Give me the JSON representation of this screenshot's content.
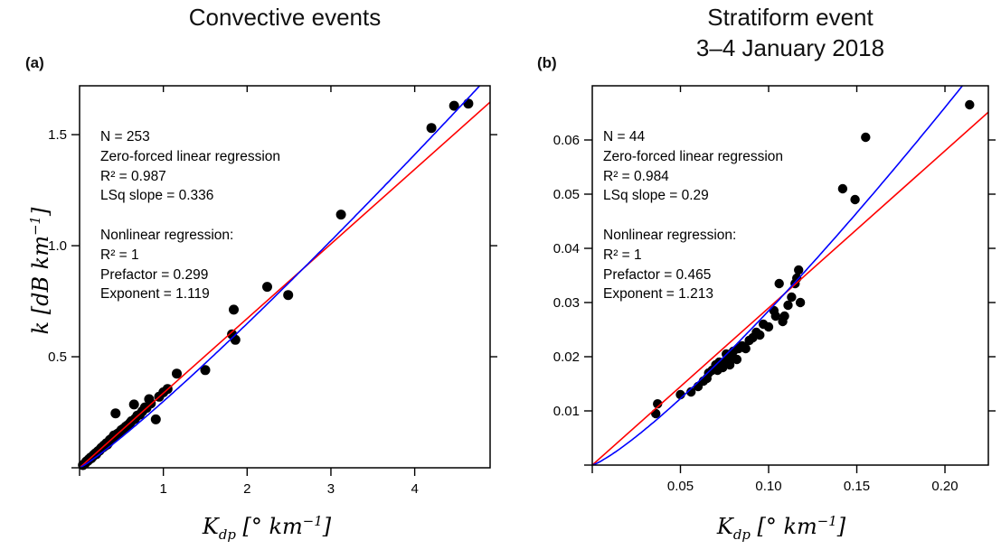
{
  "figure": {
    "kind": "two-panel scatter figure with regression fits",
    "background_color": "#ffffff",
    "point_color": "#000000",
    "linear_fit_color": "#ff0000",
    "power_fit_color": "#0000ff"
  },
  "chart_data": [
    {
      "type": "scatter",
      "panel_key": "a",
      "panel_label": "(a)",
      "title": "Convective events",
      "xlabel": "K_{dp} [° km^{−1}]",
      "ylabel": "k [dB km^{−1}]",
      "xlim": [
        0,
        4.9
      ],
      "ylim": [
        0,
        1.72
      ],
      "xticks": [
        1,
        2,
        3,
        4
      ],
      "xtick_labels": [
        "1",
        "2",
        "3",
        "4"
      ],
      "yticks": [
        0.5,
        1.0,
        1.5
      ],
      "ytick_labels": [
        "0.5",
        "1.0",
        "1.5"
      ],
      "grid": false,
      "legend": false,
      "annotation": "N = 253\nZero-forced linear regression\nR² = 0.987\nLSq slope = 0.336\n\nNonlinear regression:\nR² = 1\nPrefactor = 0.299\nExponent = 1.119",
      "n_points": 253,
      "fits": [
        {
          "name": "zero-forced linear regression",
          "equation": "k = 0.336 Kdp",
          "slope": 0.336,
          "r2": 0.987,
          "color": "#ff0000"
        },
        {
          "name": "nonlinear power-law regression",
          "equation": "k = 0.299 Kdp^1.119",
          "prefactor": 0.299,
          "exponent": 1.119,
          "r2": 1,
          "color": "#0000ff"
        }
      ],
      "point_color": "#000000",
      "points": [
        [
          0.04,
          0.012
        ],
        [
          0.06,
          0.018
        ],
        [
          0.07,
          0.022
        ],
        [
          0.08,
          0.028
        ],
        [
          0.09,
          0.03
        ],
        [
          0.1,
          0.032
        ],
        [
          0.11,
          0.038
        ],
        [
          0.12,
          0.04
        ],
        [
          0.13,
          0.045
        ],
        [
          0.14,
          0.043
        ],
        [
          0.15,
          0.05
        ],
        [
          0.16,
          0.052
        ],
        [
          0.17,
          0.058
        ],
        [
          0.18,
          0.06
        ],
        [
          0.19,
          0.065
        ],
        [
          0.2,
          0.062
        ],
        [
          0.21,
          0.07
        ],
        [
          0.22,
          0.075
        ],
        [
          0.24,
          0.078
        ],
        [
          0.25,
          0.085
        ],
        [
          0.26,
          0.09
        ],
        [
          0.28,
          0.092
        ],
        [
          0.29,
          0.1
        ],
        [
          0.3,
          0.098
        ],
        [
          0.32,
          0.11
        ],
        [
          0.33,
          0.105
        ],
        [
          0.35,
          0.115
        ],
        [
          0.36,
          0.125
        ],
        [
          0.38,
          0.13
        ],
        [
          0.4,
          0.135
        ],
        [
          0.41,
          0.145
        ],
        [
          0.43,
          0.245
        ],
        [
          0.44,
          0.15
        ],
        [
          0.46,
          0.155
        ],
        [
          0.48,
          0.16
        ],
        [
          0.5,
          0.17
        ],
        [
          0.52,
          0.175
        ],
        [
          0.55,
          0.185
        ],
        [
          0.57,
          0.19
        ],
        [
          0.6,
          0.2
        ],
        [
          0.62,
          0.21
        ],
        [
          0.65,
          0.285
        ],
        [
          0.66,
          0.22
        ],
        [
          0.69,
          0.235
        ],
        [
          0.72,
          0.24
        ],
        [
          0.75,
          0.255
        ],
        [
          0.78,
          0.272
        ],
        [
          0.8,
          0.27
        ],
        [
          0.83,
          0.309
        ],
        [
          0.85,
          0.29
        ],
        [
          0.91,
          0.218
        ],
        [
          0.95,
          0.32
        ],
        [
          1.0,
          0.34
        ],
        [
          1.05,
          0.355
        ],
        [
          1.16,
          0.424
        ],
        [
          1.5,
          0.44
        ],
        [
          1.82,
          0.601
        ],
        [
          1.84,
          0.712
        ],
        [
          1.86,
          0.576
        ],
        [
          2.24,
          0.815
        ],
        [
          2.49,
          0.778
        ],
        [
          3.12,
          1.14
        ],
        [
          4.2,
          1.53
        ],
        [
          4.47,
          1.63
        ],
        [
          4.64,
          1.64
        ]
      ]
    },
    {
      "type": "scatter",
      "panel_key": "b",
      "panel_label": "(b)",
      "title": "Stratiform event\n3–4 January 2018",
      "xlabel": "K_{dp} [° km^{−1}]",
      "ylabel": "",
      "xlim": [
        0,
        0.2246
      ],
      "ylim": [
        0,
        0.07
      ],
      "xticks": [
        0.05,
        0.1,
        0.15,
        0.2
      ],
      "xtick_labels": [
        "0.05",
        "0.10",
        "0.15",
        "0.20"
      ],
      "yticks": [
        0.01,
        0.02,
        0.03,
        0.04,
        0.05,
        0.06
      ],
      "ytick_labels": [
        "0.01",
        "0.02",
        "0.03",
        "0.04",
        "0.05",
        "0.06"
      ],
      "grid": false,
      "legend": false,
      "annotation": "N = 44\nZero-forced linear regression\nR² = 0.984\nLSq slope = 0.29\n\nNonlinear regression:\nR² = 1\nPrefactor = 0.465\nExponent = 1.213",
      "n_points": 44,
      "fits": [
        {
          "name": "zero-forced linear regression",
          "equation": "k = 0.29 Kdp",
          "slope": 0.29,
          "r2": 0.984,
          "color": "#ff0000"
        },
        {
          "name": "nonlinear power-law regression",
          "equation": "k = 0.465 Kdp^1.213",
          "prefactor": 0.465,
          "exponent": 1.213,
          "r2": 1,
          "color": "#0000ff"
        }
      ],
      "point_color": "#000000",
      "points": [
        [
          0.036,
          0.0095
        ],
        [
          0.037,
          0.0113
        ],
        [
          0.05,
          0.013
        ],
        [
          0.056,
          0.0135
        ],
        [
          0.06,
          0.0145
        ],
        [
          0.063,
          0.0155
        ],
        [
          0.065,
          0.016
        ],
        [
          0.066,
          0.017
        ],
        [
          0.068,
          0.0175
        ],
        [
          0.07,
          0.0185
        ],
        [
          0.071,
          0.0175
        ],
        [
          0.072,
          0.019
        ],
        [
          0.074,
          0.018
        ],
        [
          0.075,
          0.019
        ],
        [
          0.076,
          0.0205
        ],
        [
          0.077,
          0.0195
        ],
        [
          0.078,
          0.0185
        ],
        [
          0.079,
          0.02
        ],
        [
          0.08,
          0.021
        ],
        [
          0.082,
          0.0195
        ],
        [
          0.083,
          0.0215
        ],
        [
          0.085,
          0.022
        ],
        [
          0.087,
          0.0215
        ],
        [
          0.089,
          0.023
        ],
        [
          0.091,
          0.0235
        ],
        [
          0.093,
          0.0245
        ],
        [
          0.095,
          0.024
        ],
        [
          0.097,
          0.026
        ],
        [
          0.1,
          0.0255
        ],
        [
          0.103,
          0.0285
        ],
        [
          0.104,
          0.0275
        ],
        [
          0.106,
          0.0335
        ],
        [
          0.108,
          0.0265
        ],
        [
          0.109,
          0.0275
        ],
        [
          0.111,
          0.0295
        ],
        [
          0.113,
          0.031
        ],
        [
          0.115,
          0.0335
        ],
        [
          0.116,
          0.0345
        ],
        [
          0.117,
          0.036
        ],
        [
          0.118,
          0.03
        ],
        [
          0.142,
          0.051
        ],
        [
          0.149,
          0.049
        ],
        [
          0.155,
          0.0605
        ],
        [
          0.214,
          0.0665
        ]
      ]
    }
  ]
}
